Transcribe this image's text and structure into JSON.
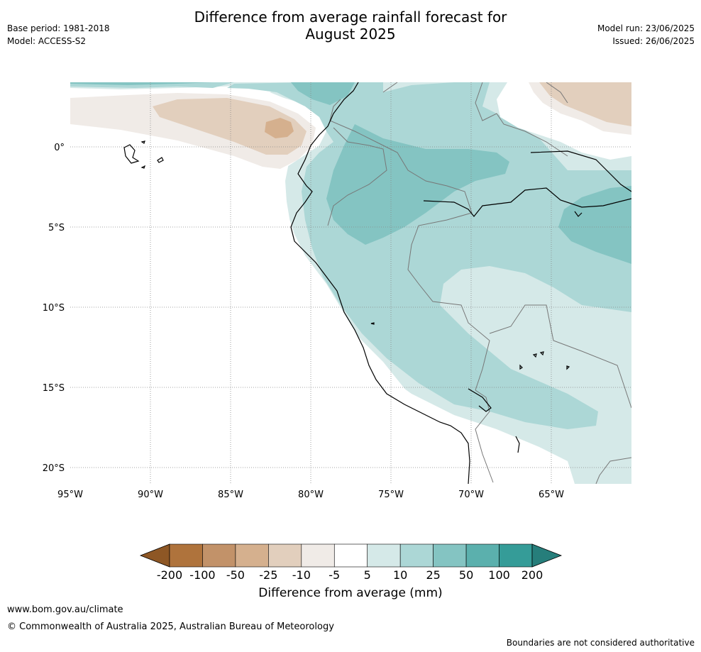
{
  "title_line1": "Difference from average rainfall forecast for",
  "title_line2": "August 2025",
  "meta_left": {
    "base_period": "Base period: 1981-2018",
    "model": "Model: ACCESS-S2"
  },
  "meta_right": {
    "model_run": "Model run: 23/06/2025",
    "issued": "Issued: 26/06/2025"
  },
  "map": {
    "lon_ticks": [
      "95°W",
      "90°W",
      "85°W",
      "80°W",
      "75°W",
      "70°W",
      "65°W"
    ],
    "lat_ticks": [
      "0°",
      "5°S",
      "10°S",
      "15°S",
      "20°S"
    ]
  },
  "colorbar": {
    "label": "Difference from average (mm)",
    "ticks": [
      "-200",
      "-100",
      "-50",
      "-25",
      "-10",
      "-5",
      "5",
      "10",
      "25",
      "50",
      "100",
      "200"
    ],
    "colors": [
      "#8e5725",
      "#af733c",
      "#c29269",
      "#d5b08e",
      "#e2cfbd",
      "#f0ebe7",
      "#ffffff",
      "#d5e9e8",
      "#acd7d6",
      "#84c4c2",
      "#5bb0ad",
      "#359c98",
      "#267e7b"
    ]
  },
  "footer": {
    "url": "www.bom.gov.au/climate",
    "copyright": "© Commonwealth of Australia 2025, Australian Bureau of Meteorology",
    "note": "Boundaries are not considered authoritative"
  }
}
